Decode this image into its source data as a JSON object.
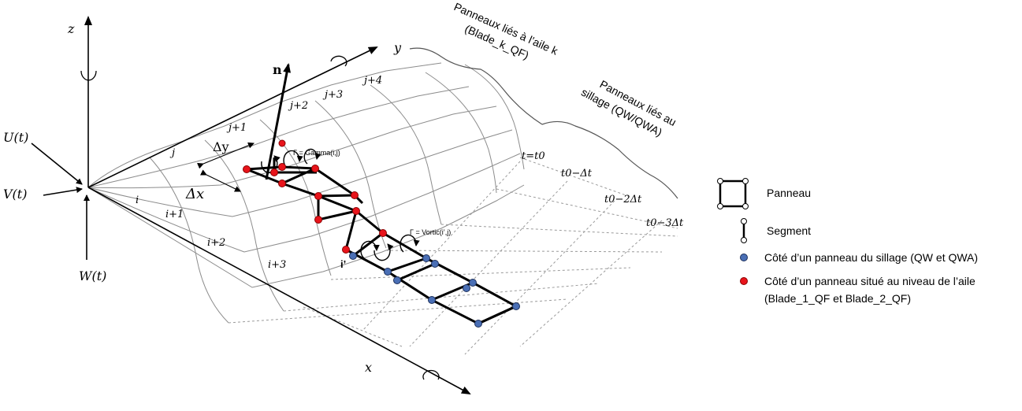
{
  "axes": {
    "x": "x",
    "y": "y",
    "z": "z",
    "normal": "n"
  },
  "velocities": {
    "u": "U(t)",
    "v": "V(t)",
    "w": "W(t)"
  },
  "deltas": {
    "dy": "Δy",
    "dx": "Δx"
  },
  "index_labels": {
    "j": [
      "j",
      "j+1",
      "j+2",
      "j+3",
      "j+4"
    ],
    "i": [
      "i",
      "i+1",
      "i+2",
      "i+3"
    ],
    "i_prime": "i’"
  },
  "time_labels": [
    "t=t0",
    "t0−Δt",
    "t0−2Δt",
    "t0−3Δt"
  ],
  "gamma_labels": {
    "gamma": "Γ = Gamma(i,j)",
    "vortic": "Γ = Vortic(i’,j)"
  },
  "group_labels": {
    "wing": [
      "Panneaux liés à l’aile k",
      "(Blade_k_QF)"
    ],
    "wake": [
      "Panneaux liés au",
      "sillage (QW/QWA)"
    ]
  },
  "legend": {
    "panel": "Panneau",
    "segment": "Segment",
    "wake_side": "Côté d’un panneau du sillage (QW et QWA)",
    "wing_side": [
      "Côté d’un panneau situé au niveau de l’aile",
      "(Blade_1_QF et Blade_2_QF)"
    ]
  },
  "colors": {
    "wing_node": "#e8141b",
    "wake_node": "#4a6fb5",
    "line": "#000000",
    "mesh": "#888888"
  }
}
